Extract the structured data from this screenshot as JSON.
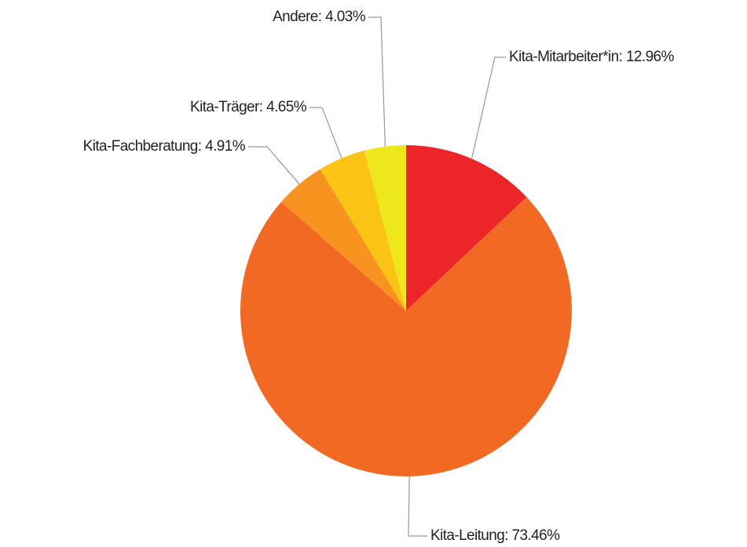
{
  "chart_data": {
    "type": "pie",
    "values": [
      12.96,
      73.46,
      4.91,
      4.65,
      4.03
    ],
    "value_labels": [
      "Kita-Mitarbeiter*in: 12.96%",
      "Kita-Leitung: 73.46%",
      "Kita-Fachberatung: 4.91%",
      "Kita-Träger: 4.65%",
      "Andere: 4.03%"
    ],
    "colors": [
      "#ec2628",
      "#f26924",
      "#f7931e",
      "#fbc314",
      "#ede71c"
    ]
  }
}
